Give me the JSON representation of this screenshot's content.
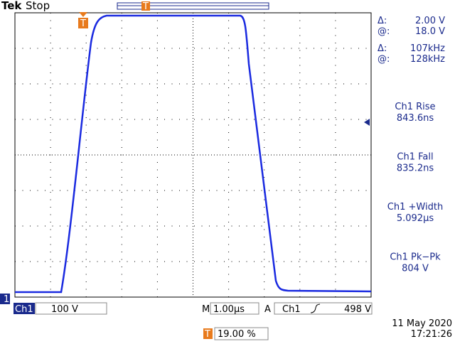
{
  "header": {
    "brand": "Tek",
    "status": "Stop"
  },
  "cursors": [
    {
      "symbol": "Δ:",
      "value": "2.00 V"
    },
    {
      "symbol": "@:",
      "value": "18.0 V"
    },
    {
      "symbol": "Δ:",
      "value": "107kHz"
    },
    {
      "symbol": "@:",
      "value": "128kHz"
    }
  ],
  "measurements": [
    {
      "name": "Ch1 Rise",
      "value": "843.6ns"
    },
    {
      "name": "Ch1 Fall",
      "value": "835.2ns"
    },
    {
      "name": "Ch1 +Width",
      "value": "5.092µs"
    },
    {
      "name": "Ch1 Pk−Pk",
      "value": "804 V"
    }
  ],
  "footer": {
    "channel": "Ch1",
    "scale": "100 V",
    "timebase_label": "M",
    "timebase": "1.00µs",
    "trigger_mode": "A",
    "trigger_source": "Ch1",
    "trigger_level": "498 V",
    "trigger_position": "19.00 %",
    "date": "11 May 2020",
    "time": "17:21:26",
    "trigger_marker": "T",
    "channel_marker": "1"
  }
}
